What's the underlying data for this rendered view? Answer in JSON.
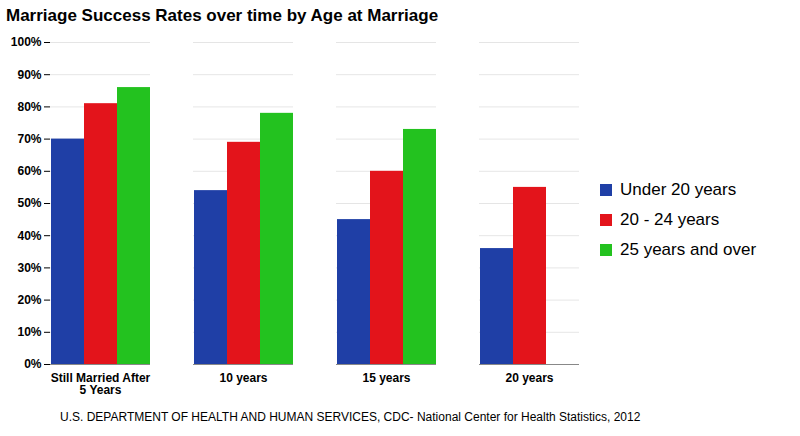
{
  "chart_data": {
    "type": "bar",
    "title": "Marriage Success Rates over time by Age at Marriage",
    "caption": "U.S. DEPARTMENT OF HEALTH AND HUMAN SERVICES, CDC- National Center for Health Statistics, 2012",
    "categories": [
      "Still Married After 5 Years",
      "10 years",
      "15 years",
      "20 years"
    ],
    "series": [
      {
        "name": "Under 20 years",
        "color": "#1f3fa6",
        "values": [
          70,
          54,
          45,
          36
        ]
      },
      {
        "name": "20 - 24 years",
        "color": "#e3141b",
        "values": [
          81,
          69,
          60,
          55
        ]
      },
      {
        "name": "25 years and over",
        "color": "#23c21f",
        "values": [
          86,
          78,
          73,
          null
        ]
      }
    ],
    "ylim": [
      0,
      100
    ],
    "yticks": [
      {
        "value": 0,
        "label": "0%"
      },
      {
        "value": 10,
        "label": "10%"
      },
      {
        "value": 20,
        "label": "20%"
      },
      {
        "value": 30,
        "label": "30%"
      },
      {
        "value": 40,
        "label": "40%"
      },
      {
        "value": 50,
        "label": "50%"
      },
      {
        "value": 60,
        "label": "60%"
      },
      {
        "value": 70,
        "label": "70%"
      },
      {
        "value": 80,
        "label": "80%"
      },
      {
        "value": 90,
        "label": "90%"
      },
      {
        "value": 100,
        "label": "100%"
      }
    ],
    "grid": true,
    "legend": "right"
  }
}
